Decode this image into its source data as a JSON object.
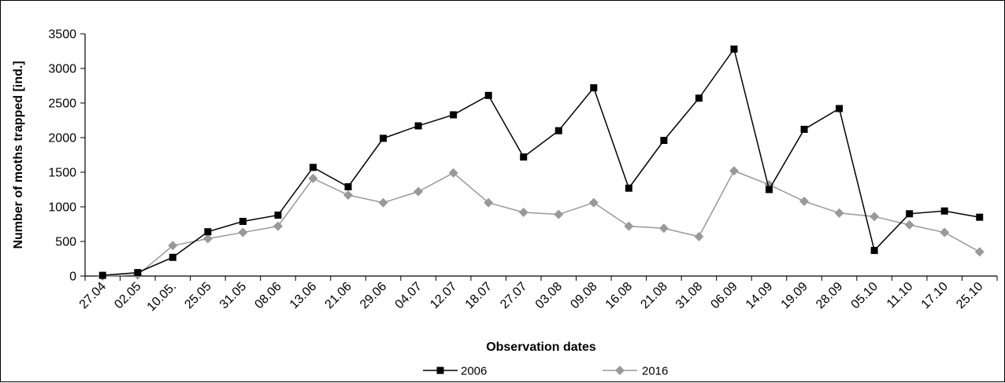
{
  "chart_data": {
    "type": "line",
    "title": "",
    "xlabel": "Observation dates",
    "ylabel": "Number of moths trapped [ind.]",
    "ylim": [
      0,
      3500
    ],
    "yticks": [
      0,
      500,
      1000,
      1500,
      2000,
      2500,
      3000,
      3500
    ],
    "grid": false,
    "legend_position": "bottom-center",
    "categories": [
      "27.04",
      "02.05",
      "10.05.",
      "25.05",
      "31.05",
      "08.06",
      "13.06",
      "21.06",
      "29.06",
      "04.07",
      "12.07",
      "18.07",
      "27.07",
      "03.08",
      "09.08",
      "16.08",
      "21.08",
      "31.08",
      "06.09",
      "14.09",
      "19.09",
      "28.09",
      "05.10",
      "11.10",
      "17.10",
      "25.10"
    ],
    "series": [
      {
        "name": "2006",
        "color": "#000000",
        "marker": "square",
        "values": [
          10,
          50,
          270,
          640,
          790,
          880,
          1570,
          1290,
          1990,
          2170,
          2330,
          2610,
          1720,
          2100,
          2720,
          1270,
          1960,
          2570,
          3280,
          1250,
          2120,
          2420,
          370,
          900,
          940,
          850
        ]
      },
      {
        "name": "2016",
        "color": "#999999",
        "marker": "diamond",
        "values": [
          0,
          15,
          440,
          540,
          630,
          720,
          1410,
          1170,
          1060,
          1220,
          1490,
          1060,
          920,
          890,
          1060,
          720,
          690,
          570,
          1520,
          1320,
          1080,
          910,
          860,
          740,
          630,
          350
        ]
      }
    ]
  }
}
